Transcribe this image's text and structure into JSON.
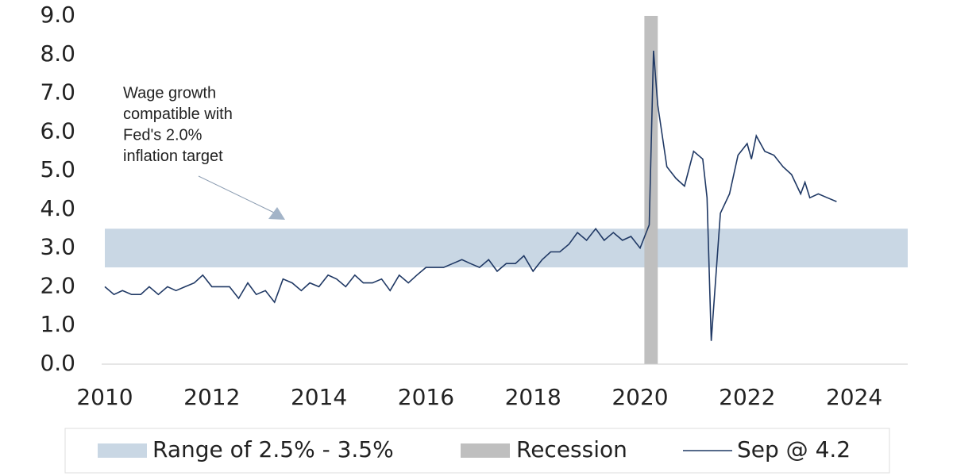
{
  "chart_data": {
    "type": "line",
    "annotation": [
      "Wage growth",
      "compatible with",
      "Fed's 2.0%",
      "inflation target"
    ],
    "xlim": [
      2010,
      2025
    ],
    "xticks": [
      2010,
      2012,
      2014,
      2016,
      2018,
      2020,
      2022,
      2024
    ],
    "ylim": [
      0,
      9
    ],
    "yticks": [
      {
        "value": 0,
        "label": "0.0"
      },
      {
        "value": 1,
        "label": "1.0"
      },
      {
        "value": 2,
        "label": "2.0"
      },
      {
        "value": 3,
        "label": "3.0"
      },
      {
        "value": 4,
        "label": "4.0"
      },
      {
        "value": 5,
        "label": "5.0"
      },
      {
        "value": 6,
        "label": "6.0"
      },
      {
        "value": 7,
        "label": "7.0"
      },
      {
        "value": 8,
        "label": "8.0"
      },
      {
        "value": 9,
        "label": "9.0"
      }
    ],
    "range_band": {
      "name": "Range of 2.5% - 3.5%",
      "values": [
        2.5,
        3.5
      ],
      "color": "#c9d7e4"
    },
    "recession": {
      "name": "Recession",
      "x": [
        2020.08,
        2020.33
      ],
      "color": "#bfbfbf"
    },
    "series": [
      {
        "name": "Sep @ 4.2",
        "color": "#1f3864",
        "x": [
          2010.0,
          2010.17,
          2010.33,
          2010.5,
          2010.67,
          2010.83,
          2011.0,
          2011.17,
          2011.33,
          2011.5,
          2011.67,
          2011.83,
          2012.0,
          2012.17,
          2012.33,
          2012.5,
          2012.67,
          2012.83,
          2013.0,
          2013.17,
          2013.33,
          2013.5,
          2013.67,
          2013.83,
          2014.0,
          2014.17,
          2014.33,
          2014.5,
          2014.67,
          2014.83,
          2015.0,
          2015.17,
          2015.33,
          2015.5,
          2015.67,
          2015.83,
          2016.0,
          2016.17,
          2016.33,
          2016.5,
          2016.67,
          2016.83,
          2017.0,
          2017.17,
          2017.33,
          2017.5,
          2017.67,
          2017.83,
          2018.0,
          2018.17,
          2018.33,
          2018.5,
          2018.67,
          2018.83,
          2019.0,
          2019.17,
          2019.33,
          2019.5,
          2019.67,
          2019.83,
          2020.0,
          2020.17,
          2020.25,
          2020.33,
          2020.5,
          2020.67,
          2020.83,
          2021.0,
          2021.17,
          2021.25,
          2021.33,
          2021.5,
          2021.67,
          2021.83,
          2022.0,
          2022.08,
          2022.17,
          2022.33,
          2022.5,
          2022.67,
          2022.83,
          2023.0,
          2023.08,
          2023.17,
          2023.33,
          2023.5,
          2023.67
        ],
        "values": [
          2.0,
          1.8,
          1.9,
          1.8,
          1.8,
          2.0,
          1.8,
          2.0,
          1.9,
          2.0,
          2.1,
          2.3,
          2.0,
          2.0,
          2.0,
          1.7,
          2.1,
          1.8,
          1.9,
          1.6,
          2.2,
          2.1,
          1.9,
          2.1,
          2.0,
          2.3,
          2.2,
          2.0,
          2.3,
          2.1,
          2.1,
          2.2,
          1.9,
          2.3,
          2.1,
          2.3,
          2.5,
          2.5,
          2.5,
          2.6,
          2.7,
          2.6,
          2.5,
          2.7,
          2.4,
          2.6,
          2.6,
          2.8,
          2.4,
          2.7,
          2.9,
          2.9,
          3.1,
          3.4,
          3.2,
          3.5,
          3.2,
          3.4,
          3.2,
          3.3,
          3.0,
          3.6,
          8.1,
          6.7,
          5.1,
          4.8,
          4.6,
          5.5,
          5.3,
          4.3,
          0.6,
          3.9,
          4.4,
          5.4,
          5.7,
          5.3,
          5.9,
          5.5,
          5.4,
          5.1,
          4.9,
          4.4,
          4.7,
          4.3,
          4.4,
          4.3,
          4.2
        ]
      }
    ]
  }
}
